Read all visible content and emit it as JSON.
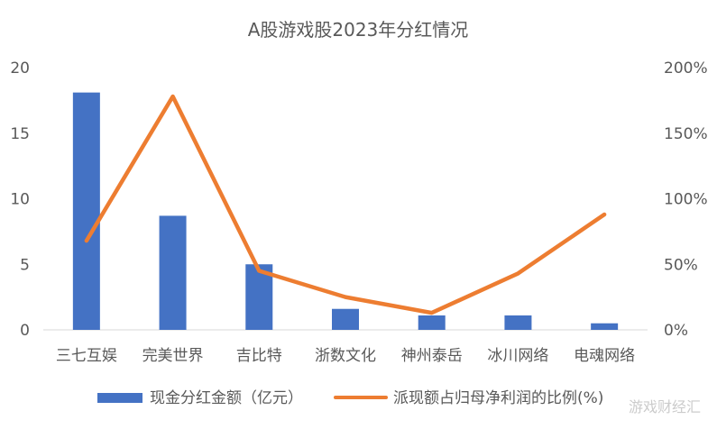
{
  "chart_data": {
    "type": "bar",
    "title": "A股游戏股2023年分红情况",
    "categories": [
      "三七互娱",
      "完美世界",
      "吉比特",
      "浙数文化",
      "神州泰岳",
      "冰川网络",
      "电魂网络"
    ],
    "series": [
      {
        "name": "现金分红金额（亿元）",
        "type": "bar",
        "axis": "left",
        "color": "#4472C4",
        "values": [
          18.1,
          8.7,
          5.0,
          1.6,
          1.1,
          1.1,
          0.5
        ]
      },
      {
        "name": "派现额占归母净利润的比例(%)",
        "type": "line",
        "axis": "right",
        "color": "#ED7D31",
        "values": [
          68,
          178,
          45,
          25,
          13,
          43,
          88
        ]
      }
    ],
    "y_left": {
      "ylim": [
        0,
        20
      ],
      "ticks": [
        0,
        5,
        10,
        15,
        20
      ],
      "tick_labels": [
        "0",
        "5",
        "10",
        "15",
        "20"
      ]
    },
    "y_right": {
      "ylim": [
        0,
        200
      ],
      "ticks": [
        0,
        50,
        100,
        150,
        200
      ],
      "tick_labels": [
        "0%",
        "50%",
        "100%",
        "150%",
        "200%"
      ]
    },
    "grid": false,
    "legend_position": "bottom"
  },
  "watermark": "游戏财经汇"
}
